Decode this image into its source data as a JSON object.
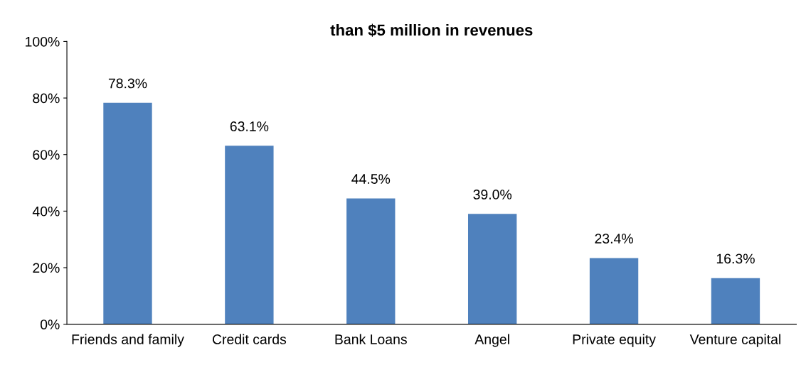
{
  "chart_data": {
    "type": "bar",
    "title": "than $5 million in revenues",
    "categories": [
      "Friends and family",
      "Credit cards",
      "Bank Loans",
      "Angel",
      "Private equity",
      "Venture capital"
    ],
    "values": [
      78.3,
      63.1,
      44.5,
      39.0,
      23.4,
      16.3
    ],
    "value_labels": [
      "78.3%",
      "63.1%",
      "44.5%",
      "39.0%",
      "23.4%",
      "16.3%"
    ],
    "color": "#4f81bd",
    "ylim": [
      0,
      100
    ],
    "yticks": [
      {
        "value": 0,
        "label": "0%"
      },
      {
        "value": 20,
        "label": "20%"
      },
      {
        "value": 40,
        "label": "40%"
      },
      {
        "value": 60,
        "label": "60%"
      },
      {
        "value": 80,
        "label": "80%"
      },
      {
        "value": 100,
        "label": "100%"
      }
    ],
    "grid": false,
    "legend": false
  }
}
